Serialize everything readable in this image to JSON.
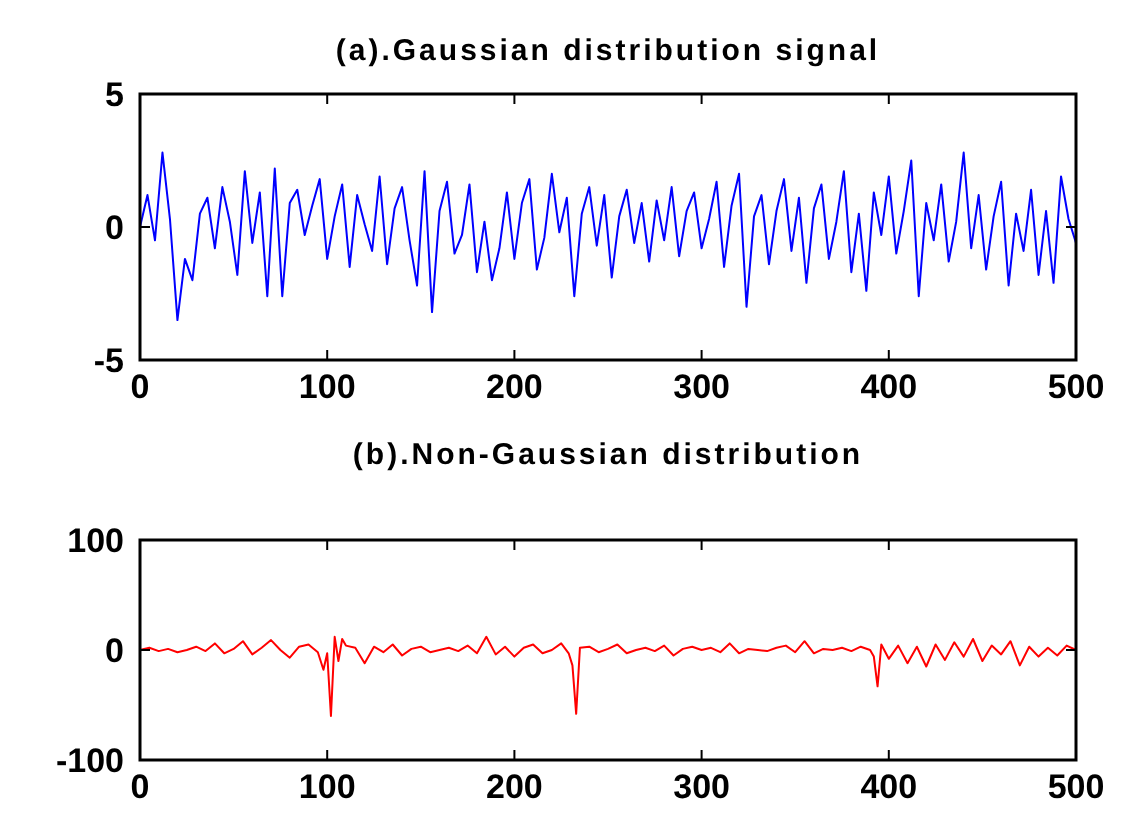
{
  "chart_data": [
    {
      "type": "line",
      "title": "(a).Gaussian distribution signal",
      "xlim": [
        0,
        500
      ],
      "xticks": [
        0,
        100,
        200,
        300,
        400,
        500
      ],
      "ylim": [
        -5,
        5
      ],
      "yticks": [
        -5,
        0,
        5
      ],
      "grid": false,
      "marker": "none",
      "line_style": "solid",
      "series": [
        {
          "color": "#0000ff",
          "x": [
            0,
            4,
            8,
            12,
            16,
            20,
            24,
            28,
            32,
            36,
            40,
            44,
            48,
            52,
            56,
            60,
            64,
            68,
            72,
            76,
            80,
            84,
            88,
            92,
            96,
            100,
            104,
            108,
            112,
            116,
            120,
            124,
            128,
            132,
            136,
            140,
            144,
            148,
            152,
            156,
            160,
            164,
            168,
            172,
            176,
            180,
            184,
            188,
            192,
            196,
            200,
            204,
            208,
            212,
            216,
            220,
            224,
            228,
            232,
            236,
            240,
            244,
            248,
            252,
            256,
            260,
            264,
            268,
            272,
            276,
            280,
            284,
            288,
            292,
            296,
            300,
            304,
            308,
            312,
            316,
            320,
            324,
            328,
            332,
            336,
            340,
            344,
            348,
            352,
            356,
            360,
            364,
            368,
            372,
            376,
            380,
            384,
            388,
            392,
            396,
            400,
            404,
            408,
            412,
            416,
            420,
            424,
            428,
            432,
            436,
            440,
            444,
            448,
            452,
            456,
            460,
            464,
            468,
            472,
            476,
            480,
            484,
            488,
            492,
            496,
            500
          ],
          "values": [
            0,
            1.2,
            -0.5,
            2.8,
            0.3,
            -3.5,
            -1.2,
            -2.0,
            0.5,
            1.1,
            -0.8,
            1.5,
            0.2,
            -1.8,
            2.1,
            -0.6,
            1.3,
            -2.6,
            2.2,
            -2.6,
            0.9,
            1.4,
            -0.3,
            0.8,
            1.8,
            -1.2,
            0.4,
            1.6,
            -1.5,
            1.2,
            0.1,
            -0.9,
            1.9,
            -1.4,
            0.7,
            1.5,
            -0.5,
            -2.2,
            2.1,
            -3.2,
            0.6,
            1.7,
            -1.0,
            -0.3,
            1.6,
            -1.7,
            0.2,
            -2.0,
            -0.8,
            1.3,
            -1.2,
            0.9,
            1.8,
            -1.6,
            -0.4,
            2.0,
            -0.2,
            1.1,
            -2.6,
            0.5,
            1.5,
            -0.7,
            1.2,
            -1.9,
            0.4,
            1.4,
            -0.6,
            0.9,
            -1.3,
            1.0,
            -0.5,
            1.5,
            -1.1,
            0.6,
            1.3,
            -0.8,
            0.3,
            1.7,
            -1.5,
            0.8,
            2.0,
            -3.0,
            0.4,
            1.2,
            -1.4,
            0.6,
            1.8,
            -0.9,
            1.1,
            -2.1,
            0.7,
            1.6,
            -1.2,
            0.2,
            2.1,
            -1.7,
            0.5,
            -2.4,
            1.3,
            -0.3,
            1.9,
            -1.0,
            0.6,
            2.5,
            -2.6,
            0.9,
            -0.5,
            1.6,
            -1.3,
            0.2,
            2.8,
            -0.8,
            1.2,
            -1.6,
            0.4,
            1.7,
            -2.2,
            0.5,
            -0.9,
            1.4,
            -1.8,
            0.6,
            -2.1,
            1.9,
            0.3,
            -0.6
          ]
        }
      ]
    },
    {
      "type": "line",
      "title": "(b).Non-Gaussian distribution",
      "xlim": [
        0,
        500
      ],
      "xticks": [
        0,
        100,
        200,
        300,
        400,
        500
      ],
      "ylim": [
        -100,
        100
      ],
      "yticks": [
        -100,
        0,
        100
      ],
      "grid": false,
      "marker": "none",
      "line_style": "solid",
      "series": [
        {
          "color": "#ff0000",
          "x": [
            0,
            5,
            10,
            15,
            20,
            25,
            30,
            35,
            40,
            45,
            50,
            55,
            60,
            65,
            70,
            75,
            80,
            85,
            90,
            95,
            98,
            100,
            102,
            104,
            106,
            108,
            110,
            115,
            120,
            125,
            130,
            135,
            140,
            145,
            150,
            155,
            160,
            165,
            170,
            175,
            180,
            185,
            190,
            195,
            200,
            205,
            210,
            215,
            220,
            225,
            229,
            231,
            233,
            235,
            240,
            245,
            250,
            255,
            260,
            265,
            270,
            275,
            280,
            285,
            290,
            295,
            300,
            305,
            310,
            315,
            320,
            325,
            330,
            335,
            340,
            345,
            350,
            355,
            360,
            365,
            370,
            375,
            380,
            385,
            390,
            392,
            394,
            396,
            400,
            405,
            410,
            415,
            420,
            425,
            430,
            435,
            440,
            445,
            450,
            455,
            460,
            465,
            470,
            475,
            480,
            485,
            490,
            495,
            500
          ],
          "values": [
            0,
            2,
            -1,
            1,
            -2,
            0,
            3,
            -1,
            6,
            -3,
            1,
            8,
            -4,
            2,
            9,
            0,
            -7,
            3,
            5,
            -2,
            -18,
            -3,
            -60,
            12,
            -10,
            10,
            4,
            2,
            -12,
            3,
            -2,
            5,
            -5,
            1,
            3,
            -2,
            0,
            2,
            -1,
            4,
            -3,
            12,
            -4,
            3,
            -6,
            2,
            5,
            -3,
            0,
            6,
            -3,
            -14,
            -58,
            2,
            3,
            -2,
            1,
            5,
            -3,
            0,
            2,
            -1,
            4,
            -5,
            1,
            3,
            0,
            2,
            -2,
            6,
            -3,
            1,
            0,
            -1,
            2,
            4,
            -2,
            8,
            -3,
            1,
            0,
            2,
            -1,
            3,
            0,
            -6,
            -33,
            5,
            -8,
            4,
            -12,
            3,
            -15,
            5,
            -9,
            7,
            -6,
            10,
            -10,
            4,
            -4,
            8,
            -14,
            3,
            -6,
            2,
            -5,
            4,
            0
          ]
        }
      ]
    }
  ]
}
